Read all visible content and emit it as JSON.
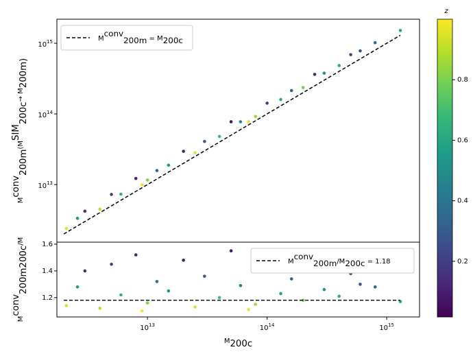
{
  "chart_data": [
    {
      "type": "scatter",
      "ylabel": {
        "base": "M",
        "sup": "conv",
        "sub": "200m",
        "mid": "(M",
        "sup2": "SIM",
        "sub2": "200c",
        "rest": "→ M",
        "sub3": "200m)"
      },
      "log_x": true,
      "log_y": true,
      "xlim": [
        1750000000000.0,
        1880000000000000.0
      ],
      "ylim": [
        1530000000000.0,
        2190000000000000.0
      ],
      "yticks": [
        {
          "value": 10000000000000.0,
          "label": "10",
          "exp": "13"
        },
        {
          "value": 100000000000000.0,
          "label": "10",
          "exp": "14"
        },
        {
          "value": 1000000000000000.0,
          "label": "10",
          "exp": "15"
        }
      ],
      "x": [
        2100000000000.0,
        2600000000000.0,
        3000000000000.0,
        4000000000000.0,
        5000000000000.0,
        6000000000000.0,
        8000000000000.0,
        10000000000000.0,
        12000000000000.0,
        15000000000000.0,
        20000000000000.0,
        25000000000000.0,
        30000000000000.0,
        40000000000000.0,
        50000000000000.0,
        60000000000000.0,
        80000000000000.0,
        100000000000000.0,
        130000000000000.0,
        160000000000000.0,
        200000000000000.0,
        250000000000000.0,
        300000000000000.0,
        400000000000000.0,
        500000000000000.0,
        600000000000000.0,
        800000000000000.0,
        1300000000000000.0,
        9000000000000.0,
        70000000000000.0
      ],
      "values": [
        2390000000000.0,
        3330000000000.0,
        4200000000000.0,
        4480000000000.0,
        7250000000000.0,
        7320000000000.0,
        12200000000000.0,
        11600000000000.0,
        15800000000000.0,
        18800000000000.0,
        29600000000000.0,
        28300000000000.0,
        40800000000000.0,
        48000000000000.0,
        77500000000000.0,
        77400000000000.0,
        92000000000000.0,
        142000000000000.0,
        160000000000000.0,
        214000000000000.0,
        236000000000000.0,
        363000000000000.0,
        378000000000000.0,
        484000000000000.0,
        690000000000000.0,
        780000000000000.0,
        1020000000000000.0,
        1520000000000000.0,
        9900000000000.0,
        77700000000000.0
      ],
      "c": [
        0.95,
        0.55,
        0.15,
        0.9,
        0.2,
        0.65,
        0.12,
        0.8,
        0.35,
        0.55,
        0.1,
        0.95,
        0.3,
        0.7,
        0.08,
        0.45,
        0.85,
        0.18,
        0.6,
        0.32,
        0.78,
        0.14,
        0.5,
        0.62,
        0.22,
        0.28,
        0.35,
        0.6,
        0.99,
        0.97
      ],
      "reference_line": {
        "x": [
          2000000000000.0,
          1300000000000000.0
        ],
        "y": [
          2000000000000.0,
          1300000000000000.0
        ],
        "color": "#000000",
        "label": {
          "base": "M",
          "sup": "conv",
          "sub": "200m",
          "rest": " = M",
          "sub2": "200c"
        }
      },
      "legend": "upper left",
      "colormap": "viridis",
      "colorbar": {
        "title": "z",
        "lim": [
          0.016,
          1.0
        ],
        "ticks": [
          0.2,
          0.4,
          0.6,
          0.8
        ]
      }
    },
    {
      "type": "scatter",
      "xlabel": {
        "base": "M",
        "sub": "200c"
      },
      "ylabel": {
        "base": "M",
        "sup": "conv",
        "sub": "200m",
        "rest": "/M",
        "sub2": "200c"
      },
      "log_x": true,
      "xlim": [
        1750000000000.0,
        1880000000000000.0
      ],
      "xticks": [
        {
          "value": 10000000000000.0,
          "label": "10",
          "exp": "13"
        },
        {
          "value": 100000000000000.0,
          "label": "10",
          "exp": "14"
        },
        {
          "value": 1000000000000000.0,
          "label": "10",
          "exp": "15"
        }
      ],
      "ylim": [
        1.055,
        1.615
      ],
      "yticks": [
        1.2,
        1.4,
        1.6
      ],
      "x": [
        2100000000000.0,
        2600000000000.0,
        3000000000000.0,
        4000000000000.0,
        5000000000000.0,
        6000000000000.0,
        8000000000000.0,
        10000000000000.0,
        12000000000000.0,
        15000000000000.0,
        20000000000000.0,
        25000000000000.0,
        30000000000000.0,
        40000000000000.0,
        50000000000000.0,
        60000000000000.0,
        80000000000000.0,
        100000000000000.0,
        130000000000000.0,
        160000000000000.0,
        200000000000000.0,
        250000000000000.0,
        300000000000000.0,
        400000000000000.0,
        500000000000000.0,
        600000000000000.0,
        800000000000000.0,
        1300000000000000.0,
        9000000000000.0,
        70000000000000.0
      ],
      "values": [
        1.14,
        1.28,
        1.4,
        1.12,
        1.45,
        1.22,
        1.52,
        1.16,
        1.32,
        1.25,
        1.48,
        1.13,
        1.36,
        1.2,
        1.55,
        1.29,
        1.15,
        1.42,
        1.23,
        1.34,
        1.18,
        1.45,
        1.26,
        1.21,
        1.38,
        1.3,
        1.28,
        1.17,
        1.1,
        1.11
      ],
      "c": [
        0.95,
        0.55,
        0.15,
        0.9,
        0.2,
        0.65,
        0.12,
        0.8,
        0.35,
        0.55,
        0.1,
        0.95,
        0.3,
        0.7,
        0.08,
        0.45,
        0.85,
        0.18,
        0.6,
        0.32,
        0.78,
        0.14,
        0.5,
        0.62,
        0.22,
        0.28,
        0.35,
        0.6,
        0.99,
        0.97
      ],
      "reference_line": {
        "x": [
          2000000000000.0,
          1300000000000000.0
        ],
        "value": 1.18,
        "color": "#000000",
        "label": {
          "base": "M",
          "sup": "conv",
          "sub": "200m",
          "rest": "/M",
          "sub2": "200c",
          "eq": " = 1.18"
        }
      },
      "legend": "upper right"
    }
  ]
}
